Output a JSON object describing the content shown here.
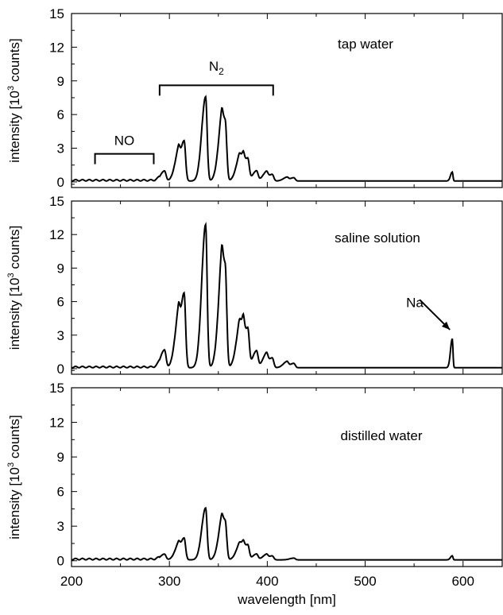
{
  "chart_data": {
    "type": "line",
    "layout": "stacked-panels",
    "xlabel": "wavelength [nm]",
    "xlim": [
      200,
      640
    ],
    "xticks": [
      200,
      300,
      400,
      500,
      600
    ],
    "ylabel_main": "intensity [10",
    "ylabel_sup": "3",
    "ylabel_tail": " counts]",
    "ylim": [
      -0.5,
      15
    ],
    "yticks": [
      0,
      3,
      6,
      9,
      12,
      15
    ],
    "line_color": "#000000",
    "panels": [
      {
        "name": "tap water",
        "yticks_shown": [
          "0",
          "3",
          "6",
          "9",
          "12",
          "15"
        ],
        "peaks": [
          {
            "x": 295,
            "y": 0.9
          },
          {
            "x": 309,
            "y": 2.0
          },
          {
            "x": 315,
            "y": 3.6
          },
          {
            "x": 337,
            "y": 7.5
          },
          {
            "x": 353,
            "y": 3.0
          },
          {
            "x": 357,
            "y": 5.4
          },
          {
            "x": 371,
            "y": 1.2
          },
          {
            "x": 375,
            "y": 1.7
          },
          {
            "x": 380,
            "y": 2.0
          },
          {
            "x": 389,
            "y": 0.9
          },
          {
            "x": 399,
            "y": 0.7
          },
          {
            "x": 405,
            "y": 0.6
          },
          {
            "x": 420,
            "y": 0.3
          },
          {
            "x": 427,
            "y": 0.3
          },
          {
            "x": 589,
            "y": 0.8
          }
        ],
        "annotations": [
          {
            "label": "N",
            "sub": "2",
            "bracket": [
              290,
              406
            ],
            "bracket_y": 8.6,
            "label_y": 9.9
          },
          {
            "label": "NO",
            "sub": "",
            "bracket": [
              224,
              284
            ],
            "bracket_y": 2.5,
            "label_y": 3.3
          }
        ]
      },
      {
        "name": "saline solution",
        "yticks_shown": [
          "0",
          "3",
          "6",
          "9",
          "12",
          "15"
        ],
        "peaks": [
          {
            "x": 295,
            "y": 1.6
          },
          {
            "x": 309,
            "y": 3.5
          },
          {
            "x": 315,
            "y": 6.7
          },
          {
            "x": 337,
            "y": 12.8
          },
          {
            "x": 353,
            "y": 5.0
          },
          {
            "x": 357,
            "y": 9.2
          },
          {
            "x": 371,
            "y": 2.0
          },
          {
            "x": 375,
            "y": 3.1
          },
          {
            "x": 380,
            "y": 3.5
          },
          {
            "x": 389,
            "y": 1.5
          },
          {
            "x": 399,
            "y": 1.1
          },
          {
            "x": 405,
            "y": 0.9
          },
          {
            "x": 420,
            "y": 0.5
          },
          {
            "x": 427,
            "y": 0.4
          },
          {
            "x": 589,
            "y": 2.6
          }
        ],
        "annotations": [
          {
            "label": "Na",
            "arrow_from": [
              580,
              5.6
            ],
            "arrow_to": [
              589,
              3.2
            ],
            "label_x": 572,
            "label_y": 6.5
          }
        ]
      },
      {
        "name": "distilled water",
        "yticks_shown": [
          "0",
          "3",
          "6",
          "9",
          "12",
          "15"
        ],
        "peaks": [
          {
            "x": 295,
            "y": 0.5
          },
          {
            "x": 309,
            "y": 1.0
          },
          {
            "x": 315,
            "y": 1.9
          },
          {
            "x": 337,
            "y": 4.5
          },
          {
            "x": 353,
            "y": 1.8
          },
          {
            "x": 357,
            "y": 3.4
          },
          {
            "x": 371,
            "y": 0.7
          },
          {
            "x": 375,
            "y": 1.1
          },
          {
            "x": 380,
            "y": 1.3
          },
          {
            "x": 389,
            "y": 0.5
          },
          {
            "x": 399,
            "y": 0.4
          },
          {
            "x": 405,
            "y": 0.35
          },
          {
            "x": 427,
            "y": 0.15
          },
          {
            "x": 589,
            "y": 0.35
          }
        ],
        "annotations": []
      }
    ]
  }
}
